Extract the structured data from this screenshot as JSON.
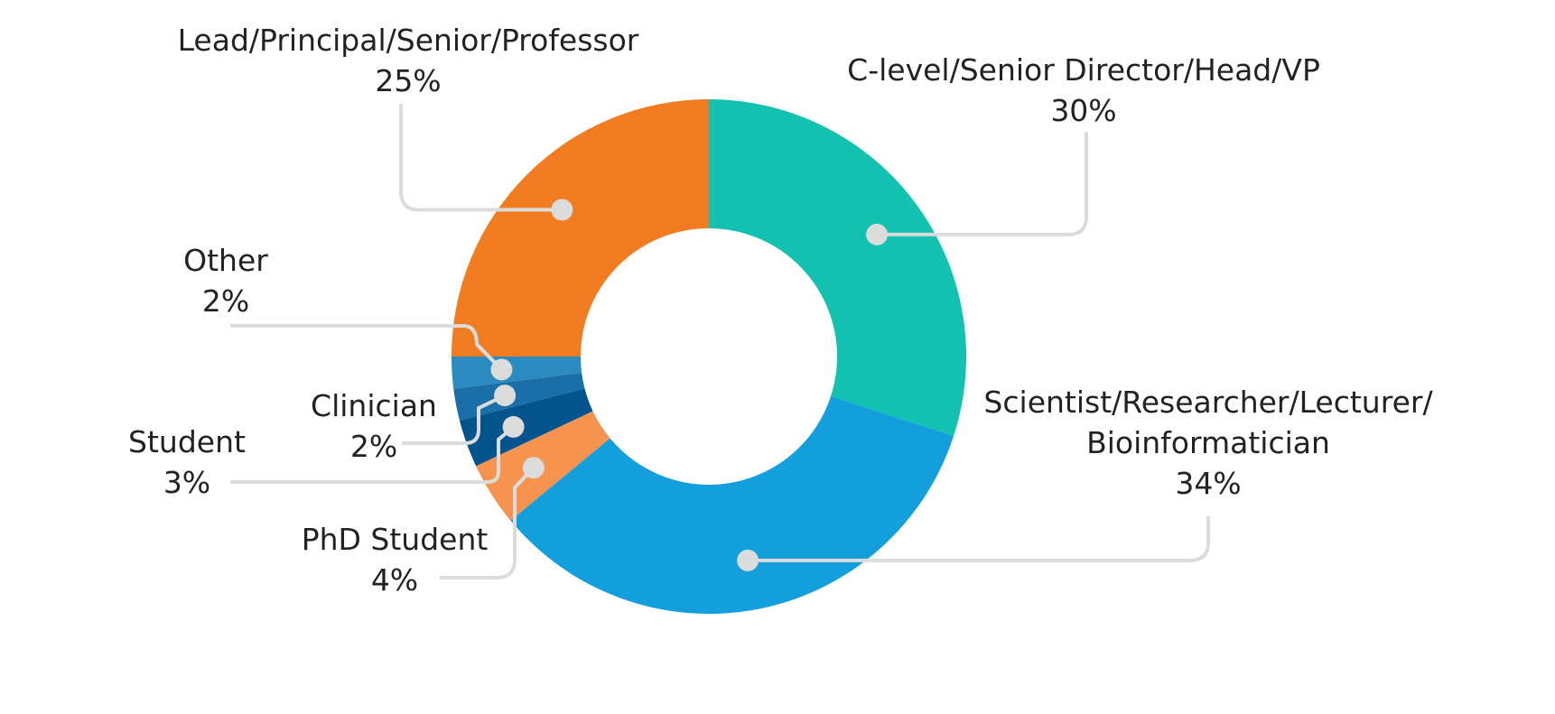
{
  "chart_data": {
    "type": "pie",
    "donut": true,
    "unit": "%",
    "slices": [
      {
        "label": "C-level/Senior Director/Head/VP",
        "lines": [
          "C-level/Senior Director/Head/VP"
        ],
        "value": 30,
        "value_text": "30%",
        "color": "#12c1b0"
      },
      {
        "label": "Scientist/Researcher/Lecturer/Bioinformatician",
        "lines": [
          "Scientist/Researcher/Lecturer/",
          "Bioinformatician"
        ],
        "value": 34,
        "value_text": "34%",
        "color": "#129fdc"
      },
      {
        "label": "PhD Student",
        "lines": [
          "PhD Student"
        ],
        "value": 4,
        "value_text": "4%",
        "color": "#f5934f"
      },
      {
        "label": "Student",
        "lines": [
          "Student"
        ],
        "value": 3,
        "value_text": "3%",
        "color": "#03538c"
      },
      {
        "label": "Clinician",
        "lines": [
          "Clinician"
        ],
        "value": 2,
        "value_text": "2%",
        "color": "#1a6fa8"
      },
      {
        "label": "Other",
        "lines": [
          "Other"
        ],
        "value": 2,
        "value_text": "2%",
        "color": "#2b8bc0"
      },
      {
        "label": "Lead/Principal/Senior/Professor",
        "lines": [
          "Lead/Principal/Senior/Professor"
        ],
        "value": 25,
        "value_text": "25%",
        "color": "#f17c22"
      }
    ],
    "leader_line_color": "#dcdcdc"
  }
}
